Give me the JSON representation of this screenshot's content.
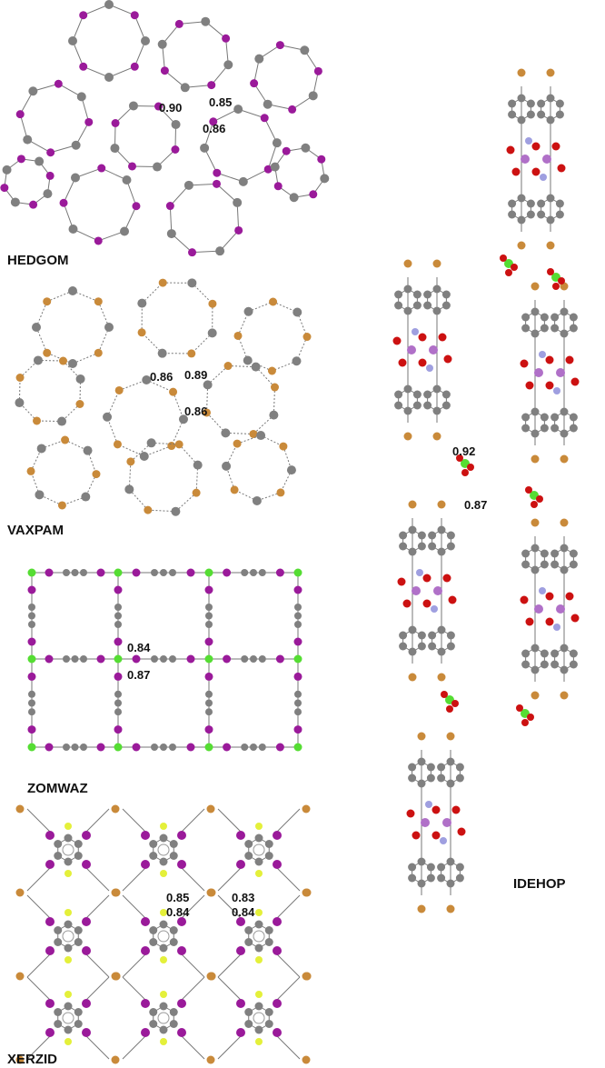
{
  "panels": [
    {
      "label": "HEDGOM",
      "annotations": [
        "0.90",
        "0.85",
        "0.86"
      ]
    },
    {
      "label": "VAXPAM",
      "annotations": [
        "0.86",
        "0.89",
        "0.86"
      ]
    },
    {
      "label": "ZOMWAZ",
      "annotations": [
        "0.84",
        "0.87"
      ]
    },
    {
      "label": "XERZID",
      "annotations": [
        "0.85",
        "0.84",
        "0.83",
        "0.84"
      ]
    },
    {
      "label": "IDEHOP",
      "annotations": [
        "0.92",
        "0.87"
      ]
    }
  ]
}
